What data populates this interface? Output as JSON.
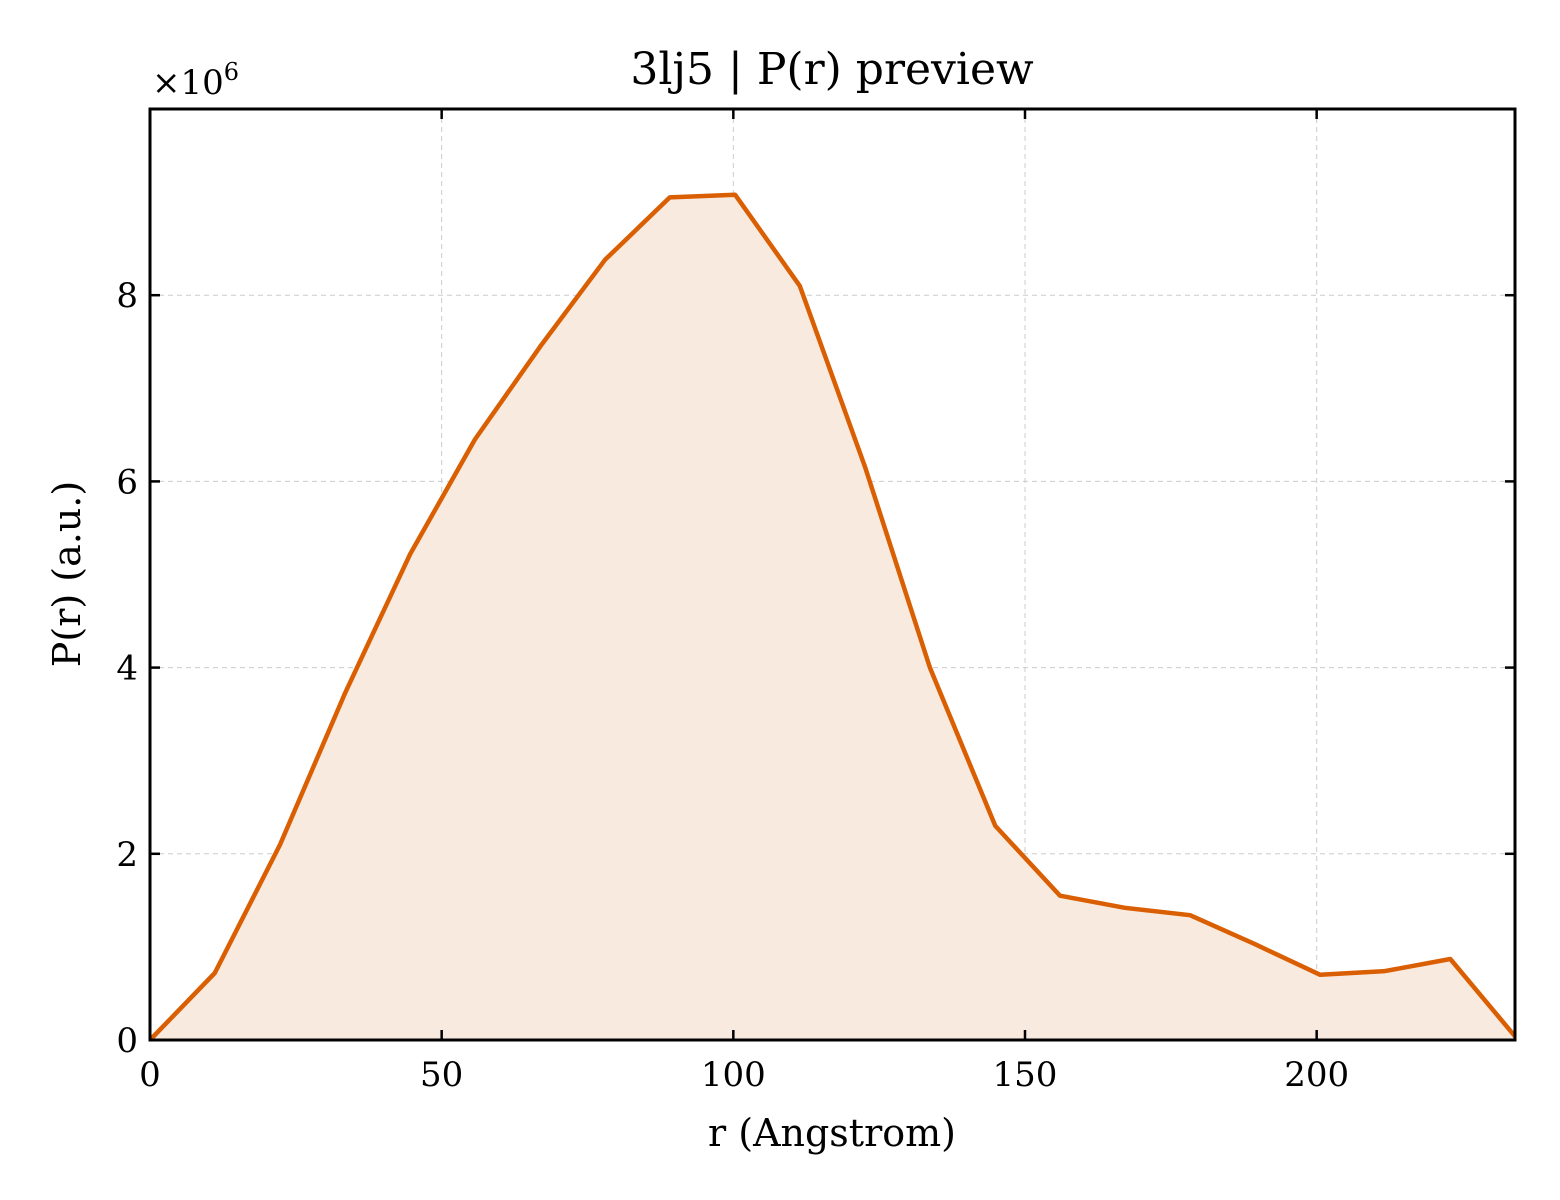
{
  "chart_data": {
    "type": "area",
    "title": "3lj5 | P(r) preview",
    "xlabel": "r (Angstrom)",
    "ylabel": "P(r) (a.u.)",
    "y_multiplier_text": "×10",
    "y_multiplier_exponent": "6",
    "xlim": [
      0,
      234
    ],
    "ylim": [
      0,
      10
    ],
    "x_ticks": [
      0,
      50,
      100,
      150,
      200
    ],
    "y_ticks": [
      0,
      2,
      4,
      6,
      8
    ],
    "grid": true,
    "line_color": "#d95f02",
    "fill_color": "#f9eae0",
    "series": [
      {
        "x": [
          0,
          11.1,
          22.3,
          33.4,
          44.6,
          55.7,
          66.9,
          78.0,
          89.1,
          100.3,
          111.4,
          122.6,
          133.7,
          144.9,
          156.0,
          167.1,
          178.3,
          189.4,
          200.6,
          211.7,
          222.9,
          234.0
        ],
        "values": [
          0.0,
          0.72,
          2.1,
          3.72,
          5.22,
          6.45,
          7.45,
          8.38,
          9.05,
          9.08,
          8.1,
          6.15,
          4.0,
          2.3,
          1.55,
          1.42,
          1.34,
          1.03,
          0.7,
          0.74,
          0.87,
          0.04
        ]
      }
    ]
  }
}
